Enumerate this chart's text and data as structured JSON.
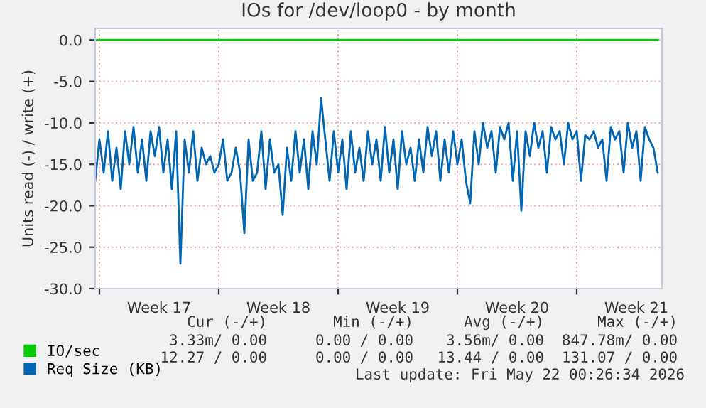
{
  "chart_data": {
    "type": "line",
    "title": "IOs for /dev/loop0 - by month",
    "ylabel": "Units read (-) / write (+)",
    "xlim": [
      "2026-04-19T18:00",
      "2026-05-23T00:00"
    ],
    "xticks": [
      {
        "value": "2026-04-20",
        "label": null
      },
      {
        "value": "2026-04-23T12:00",
        "label": "Week 17"
      },
      {
        "value": "2026-04-27",
        "label": null
      },
      {
        "value": "2026-04-30T12:00",
        "label": "Week 18"
      },
      {
        "value": "2026-05-04",
        "label": null
      },
      {
        "value": "2026-05-07T12:00",
        "label": "Week 19"
      },
      {
        "value": "2026-05-11",
        "label": null
      },
      {
        "value": "2026-05-14T12:00",
        "label": "Week 20"
      },
      {
        "value": "2026-05-18",
        "label": null
      },
      {
        "value": "2026-05-21T12:00",
        "label": "Week 21"
      }
    ],
    "ylim": [
      -30,
      1.4
    ],
    "yticks": [
      {
        "value": 0,
        "label": "0.0"
      },
      {
        "value": -5,
        "label": "-5.0"
      },
      {
        "value": -10,
        "label": "-10.0"
      },
      {
        "value": -15,
        "label": "-15.0"
      },
      {
        "value": -20,
        "label": "-20.0"
      },
      {
        "value": -25,
        "label": "-25.0"
      },
      {
        "value": -30,
        "label": "-30.0"
      }
    ],
    "grid": true,
    "legend": "bottom",
    "x": [
      "2026-04-19T18:00",
      "2026-04-20T00:00",
      "2026-04-20T06:00",
      "2026-04-20T12:00",
      "2026-04-20T18:00",
      "2026-04-21T00:00",
      "2026-04-21T06:00",
      "2026-04-21T12:00",
      "2026-04-21T18:00",
      "2026-04-22T00:00",
      "2026-04-22T06:00",
      "2026-04-22T12:00",
      "2026-04-22T18:00",
      "2026-04-23T00:00",
      "2026-04-23T06:00",
      "2026-04-23T12:00",
      "2026-04-23T18:00",
      "2026-04-24T00:00",
      "2026-04-24T06:00",
      "2026-04-24T12:00",
      "2026-04-24T18:00",
      "2026-04-25T00:00",
      "2026-04-25T06:00",
      "2026-04-25T12:00",
      "2026-04-25T18:00",
      "2026-04-26T00:00",
      "2026-04-26T06:00",
      "2026-04-26T12:00",
      "2026-04-26T18:00",
      "2026-04-27T00:00",
      "2026-04-27T06:00",
      "2026-04-27T12:00",
      "2026-04-27T18:00",
      "2026-04-28T00:00",
      "2026-04-28T06:00",
      "2026-04-28T12:00",
      "2026-04-28T18:00",
      "2026-04-29T00:00",
      "2026-04-29T06:00",
      "2026-04-29T12:00",
      "2026-04-29T18:00",
      "2026-04-30T00:00",
      "2026-04-30T06:00",
      "2026-04-30T12:00",
      "2026-04-30T18:00",
      "2026-05-01T00:00",
      "2026-05-01T06:00",
      "2026-05-01T12:00",
      "2026-05-01T18:00",
      "2026-05-02T00:00",
      "2026-05-02T06:00",
      "2026-05-02T12:00",
      "2026-05-02T18:00",
      "2026-05-03T00:00",
      "2026-05-03T06:00",
      "2026-05-03T12:00",
      "2026-05-03T18:00",
      "2026-05-04T00:00",
      "2026-05-04T06:00",
      "2026-05-04T12:00",
      "2026-05-04T18:00",
      "2026-05-05T00:00",
      "2026-05-05T06:00",
      "2026-05-05T12:00",
      "2026-05-05T18:00",
      "2026-05-06T00:00",
      "2026-05-06T06:00",
      "2026-05-06T12:00",
      "2026-05-06T18:00",
      "2026-05-07T00:00",
      "2026-05-07T06:00",
      "2026-05-07T12:00",
      "2026-05-07T18:00",
      "2026-05-08T00:00",
      "2026-05-08T06:00",
      "2026-05-08T12:00",
      "2026-05-08T18:00",
      "2026-05-09T00:00",
      "2026-05-09T06:00",
      "2026-05-09T12:00",
      "2026-05-09T18:00",
      "2026-05-10T00:00",
      "2026-05-10T06:00",
      "2026-05-10T12:00",
      "2026-05-10T18:00",
      "2026-05-11T00:00",
      "2026-05-11T06:00",
      "2026-05-11T12:00",
      "2026-05-11T18:00",
      "2026-05-12T00:00",
      "2026-05-12T06:00",
      "2026-05-12T12:00",
      "2026-05-12T18:00",
      "2026-05-13T00:00",
      "2026-05-13T06:00",
      "2026-05-13T12:00",
      "2026-05-13T18:00",
      "2026-05-14T00:00",
      "2026-05-14T06:00",
      "2026-05-14T12:00",
      "2026-05-14T18:00",
      "2026-05-15T00:00",
      "2026-05-15T06:00",
      "2026-05-15T12:00",
      "2026-05-15T18:00",
      "2026-05-16T00:00",
      "2026-05-16T06:00",
      "2026-05-16T12:00",
      "2026-05-16T18:00",
      "2026-05-17T00:00",
      "2026-05-17T06:00",
      "2026-05-17T12:00",
      "2026-05-17T18:00",
      "2026-05-18T00:00",
      "2026-05-18T06:00",
      "2026-05-18T12:00",
      "2026-05-18T18:00",
      "2026-05-19T00:00",
      "2026-05-19T06:00",
      "2026-05-19T12:00",
      "2026-05-19T18:00",
      "2026-05-20T00:00",
      "2026-05-20T06:00",
      "2026-05-20T12:00",
      "2026-05-20T18:00",
      "2026-05-21T00:00",
      "2026-05-21T06:00",
      "2026-05-21T12:00",
      "2026-05-21T18:00",
      "2026-05-22T00:00",
      "2026-05-22T06:00",
      "2026-05-22T12:00",
      "2026-05-22T18:00"
    ],
    "series": [
      {
        "name": "IO/sec",
        "color": "#00cc00",
        "x": [
          "2026-04-19T18:00",
          "2026-05-22T18:00"
        ],
        "values": [
          0,
          0
        ]
      },
      {
        "name": "Req Size (KB)",
        "color": "#0066b3",
        "values": [
          -17,
          -12,
          -16,
          -11,
          -17,
          -13,
          -18,
          -11,
          -15,
          -10.5,
          -16,
          -12,
          -17,
          -11,
          -14,
          -10.5,
          -16,
          -12,
          -18,
          -11,
          -27,
          -12,
          -16,
          -11,
          -17,
          -13,
          -15,
          -14,
          -16,
          -15,
          -12,
          -17,
          -16,
          -13,
          -16,
          -23.3,
          -12,
          -17,
          -16,
          -11,
          -18,
          -12,
          -16,
          -15,
          -21.1,
          -13,
          -17,
          -11,
          -16,
          -12,
          -18,
          -11,
          -15,
          -7,
          -12,
          -17,
          -11,
          -16,
          -12,
          -18,
          -11,
          -16,
          -13,
          -17,
          -11,
          -15,
          -12,
          -17,
          -10.5,
          -16,
          -12,
          -18,
          -11,
          -15,
          -13,
          -17,
          -12,
          -16,
          -10.5,
          -14,
          -11,
          -17,
          -12,
          -16,
          -11,
          -15,
          -12,
          -17,
          -19.7,
          -11,
          -15,
          -10,
          -13,
          -11,
          -16,
          -10.5,
          -12,
          -10,
          -17,
          -11,
          -20.6,
          -11,
          -14,
          -10,
          -13,
          -11,
          -16,
          -10.5,
          -12,
          -11,
          -15,
          -10,
          -12,
          -11,
          -17,
          -11.5,
          -12,
          -11,
          -13,
          -12,
          -17,
          -10.5,
          -12,
          -11,
          -16,
          -10,
          -13,
          -11,
          -17,
          -10.5,
          -12,
          -13,
          -16
        ]
      }
    ],
    "annotations": [
      "Cur (-/+)",
      "Min (-/+)",
      "Avg (-/+)",
      "Max (-/+)",
      "3.33m/ 0.00",
      "0.00 / 0.00",
      "3.56m/ 0.00",
      "847.78m/ 0.00",
      "12.27 / 0.00",
      "0.00 / 0.00",
      "13.44 / 0.00",
      "131.07 / 0.00",
      "Last update: Fri May 22 00:26:34 2026"
    ]
  }
}
